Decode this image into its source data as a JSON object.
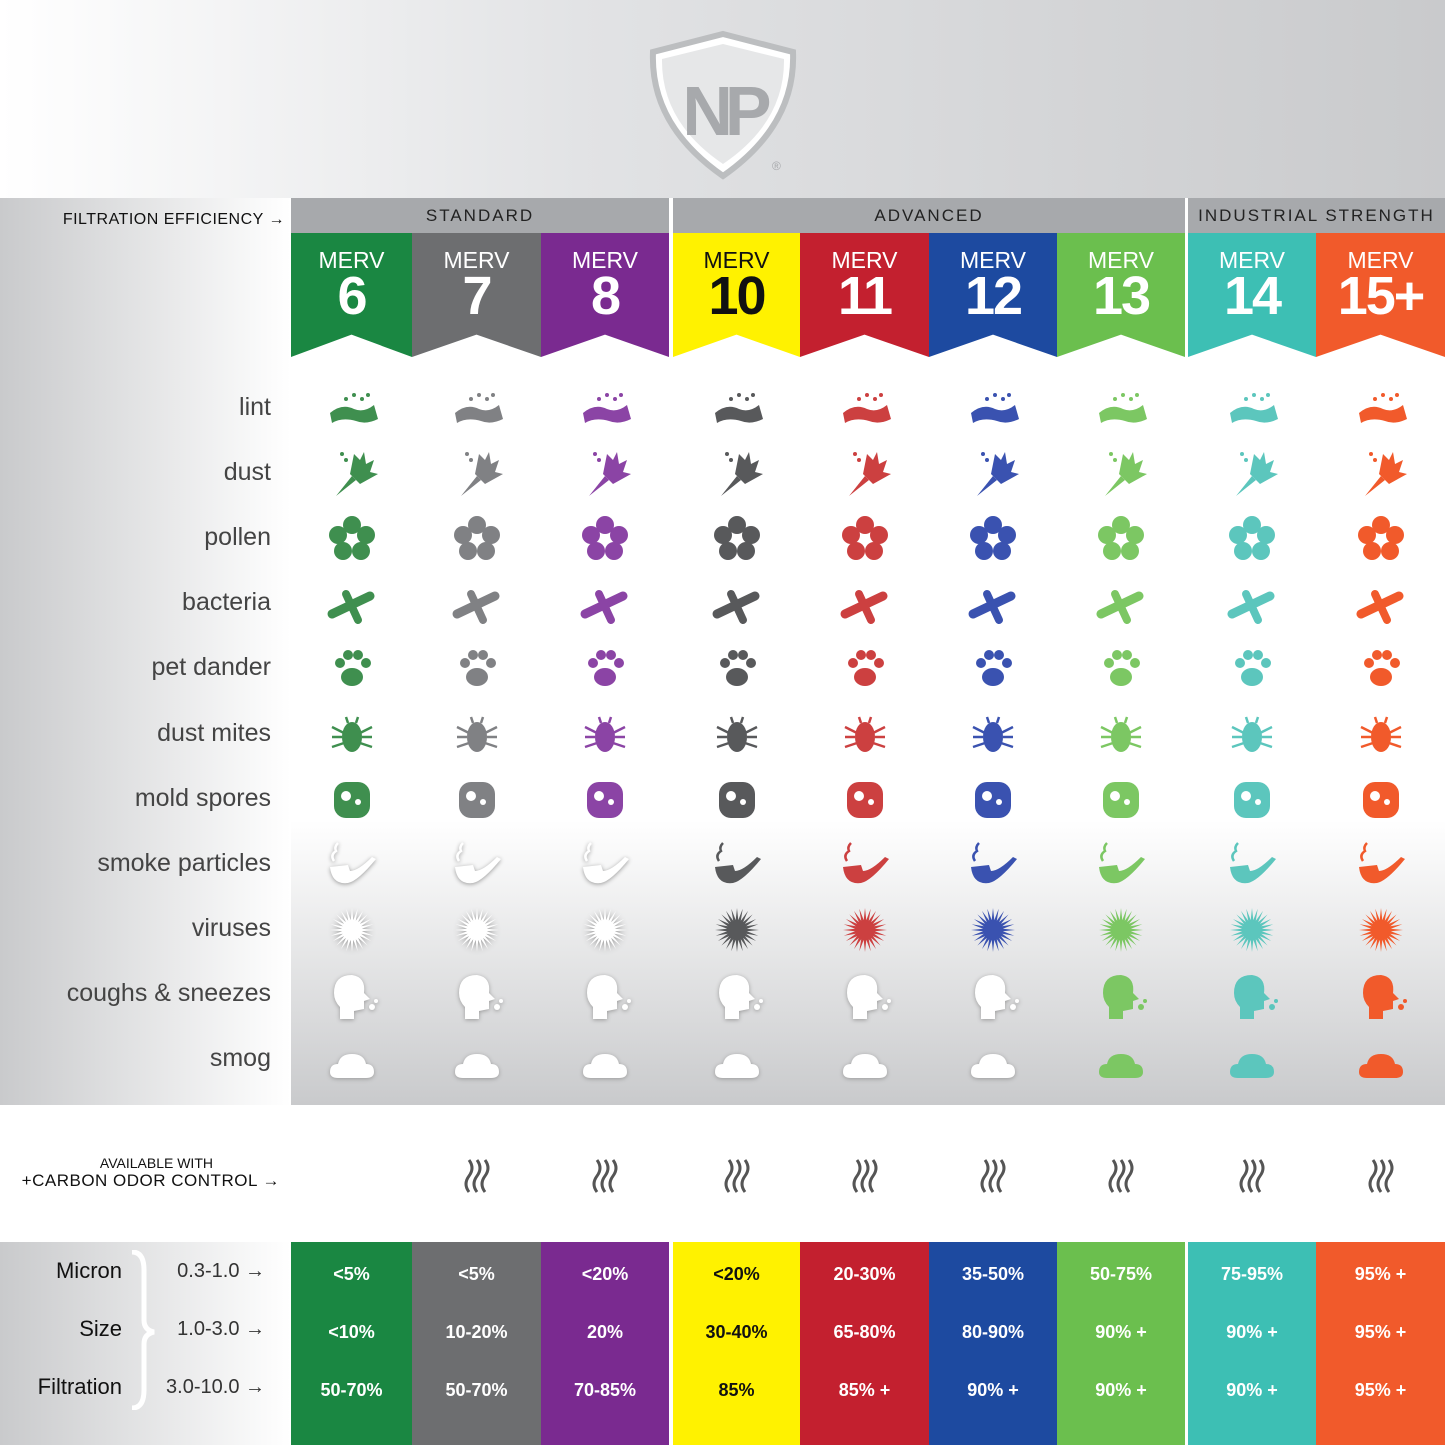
{
  "header": {
    "logo_text": "NP",
    "filtration_label": "FILTRATION EFFICIENCY →"
  },
  "groups": [
    {
      "label": "STANDARD"
    },
    {
      "label": "ADVANCED"
    },
    {
      "label": "INDUSTRIAL STRENGTH"
    }
  ],
  "filters": [
    {
      "merv": "MERV",
      "rating": "6",
      "color": "#1a8742",
      "icon_color": "#3f8f4f",
      "text_color": "#ffffff"
    },
    {
      "merv": "MERV",
      "rating": "7",
      "color": "#6d6e70",
      "icon_color": "#808184",
      "text_color": "#ffffff"
    },
    {
      "merv": "MERV",
      "rating": "8",
      "color": "#7a2a90",
      "icon_color": "#8b44a5",
      "text_color": "#ffffff"
    },
    {
      "merv": "MERV",
      "rating": "10",
      "color": "#fff200",
      "icon_color": "#58595b",
      "text_color": "#111111"
    },
    {
      "merv": "MERV",
      "rating": "11",
      "color": "#c3202f",
      "icon_color": "#cc4040",
      "text_color": "#ffffff"
    },
    {
      "merv": "MERV",
      "rating": "12",
      "color": "#1d4aa0",
      "icon_color": "#3a52b0",
      "text_color": "#ffffff"
    },
    {
      "merv": "MERV",
      "rating": "13",
      "color": "#6bbf4e",
      "icon_color": "#7cc763",
      "text_color": "#ffffff"
    },
    {
      "merv": "MERV",
      "rating": "14",
      "color": "#3dbfb4",
      "icon_color": "#5cc6bd",
      "text_color": "#ffffff"
    },
    {
      "merv": "MERV",
      "rating": "15+",
      "color": "#f15a2b",
      "icon_color": "#f15a2b",
      "text_color": "#ffffff"
    }
  ],
  "contaminants": [
    {
      "label": "lint",
      "icon": "lint-icon",
      "min_filter_index": 0
    },
    {
      "label": "dust",
      "icon": "duster-icon",
      "min_filter_index": 0
    },
    {
      "label": "pollen",
      "icon": "flower-icon",
      "min_filter_index": 0
    },
    {
      "label": "bacteria",
      "icon": "bacteria-icon",
      "min_filter_index": 0
    },
    {
      "label": "pet dander",
      "icon": "paw-icon",
      "min_filter_index": 0
    },
    {
      "label": "dust mites",
      "icon": "mite-icon",
      "min_filter_index": 0
    },
    {
      "label": "mold spores",
      "icon": "mold-icon",
      "min_filter_index": 0
    },
    {
      "label": "smoke particles",
      "icon": "pipe-icon",
      "min_filter_index": 3
    },
    {
      "label": "viruses",
      "icon": "virus-icon",
      "min_filter_index": 3
    },
    {
      "label": "coughs & sneezes",
      "icon": "sneeze-head-icon",
      "min_filter_index": 6
    },
    {
      "label": "smog",
      "icon": "cloud-icon",
      "min_filter_index": 6
    }
  ],
  "carbon": {
    "line1": "AVAILABLE WITH",
    "line2": "+CARBON ODOR CONTROL →",
    "icon": "odor-steam-icon",
    "available": [
      false,
      true,
      true,
      true,
      true,
      true,
      true,
      true,
      true
    ]
  },
  "micron": {
    "labels": [
      "Micron",
      "Size",
      "Filtration"
    ],
    "ranges": [
      "0.3-1.0 →",
      "1.0-3.0 →",
      "3.0-10.0 →"
    ],
    "values": [
      [
        "<5%",
        "<10%",
        "50-70%"
      ],
      [
        "<5%",
        "10-20%",
        "50-70%"
      ],
      [
        "<20%",
        "20%",
        "70-85%"
      ],
      [
        "<20%",
        "30-40%",
        "85%"
      ],
      [
        "20-30%",
        "65-80%",
        "85% +"
      ],
      [
        "35-50%",
        "80-90%",
        "90% +"
      ],
      [
        "50-75%",
        "90% +",
        "90% +"
      ],
      [
        "75-95%",
        "90% +",
        "90% +"
      ],
      [
        "95% +",
        "95% +",
        "95% +"
      ]
    ]
  }
}
